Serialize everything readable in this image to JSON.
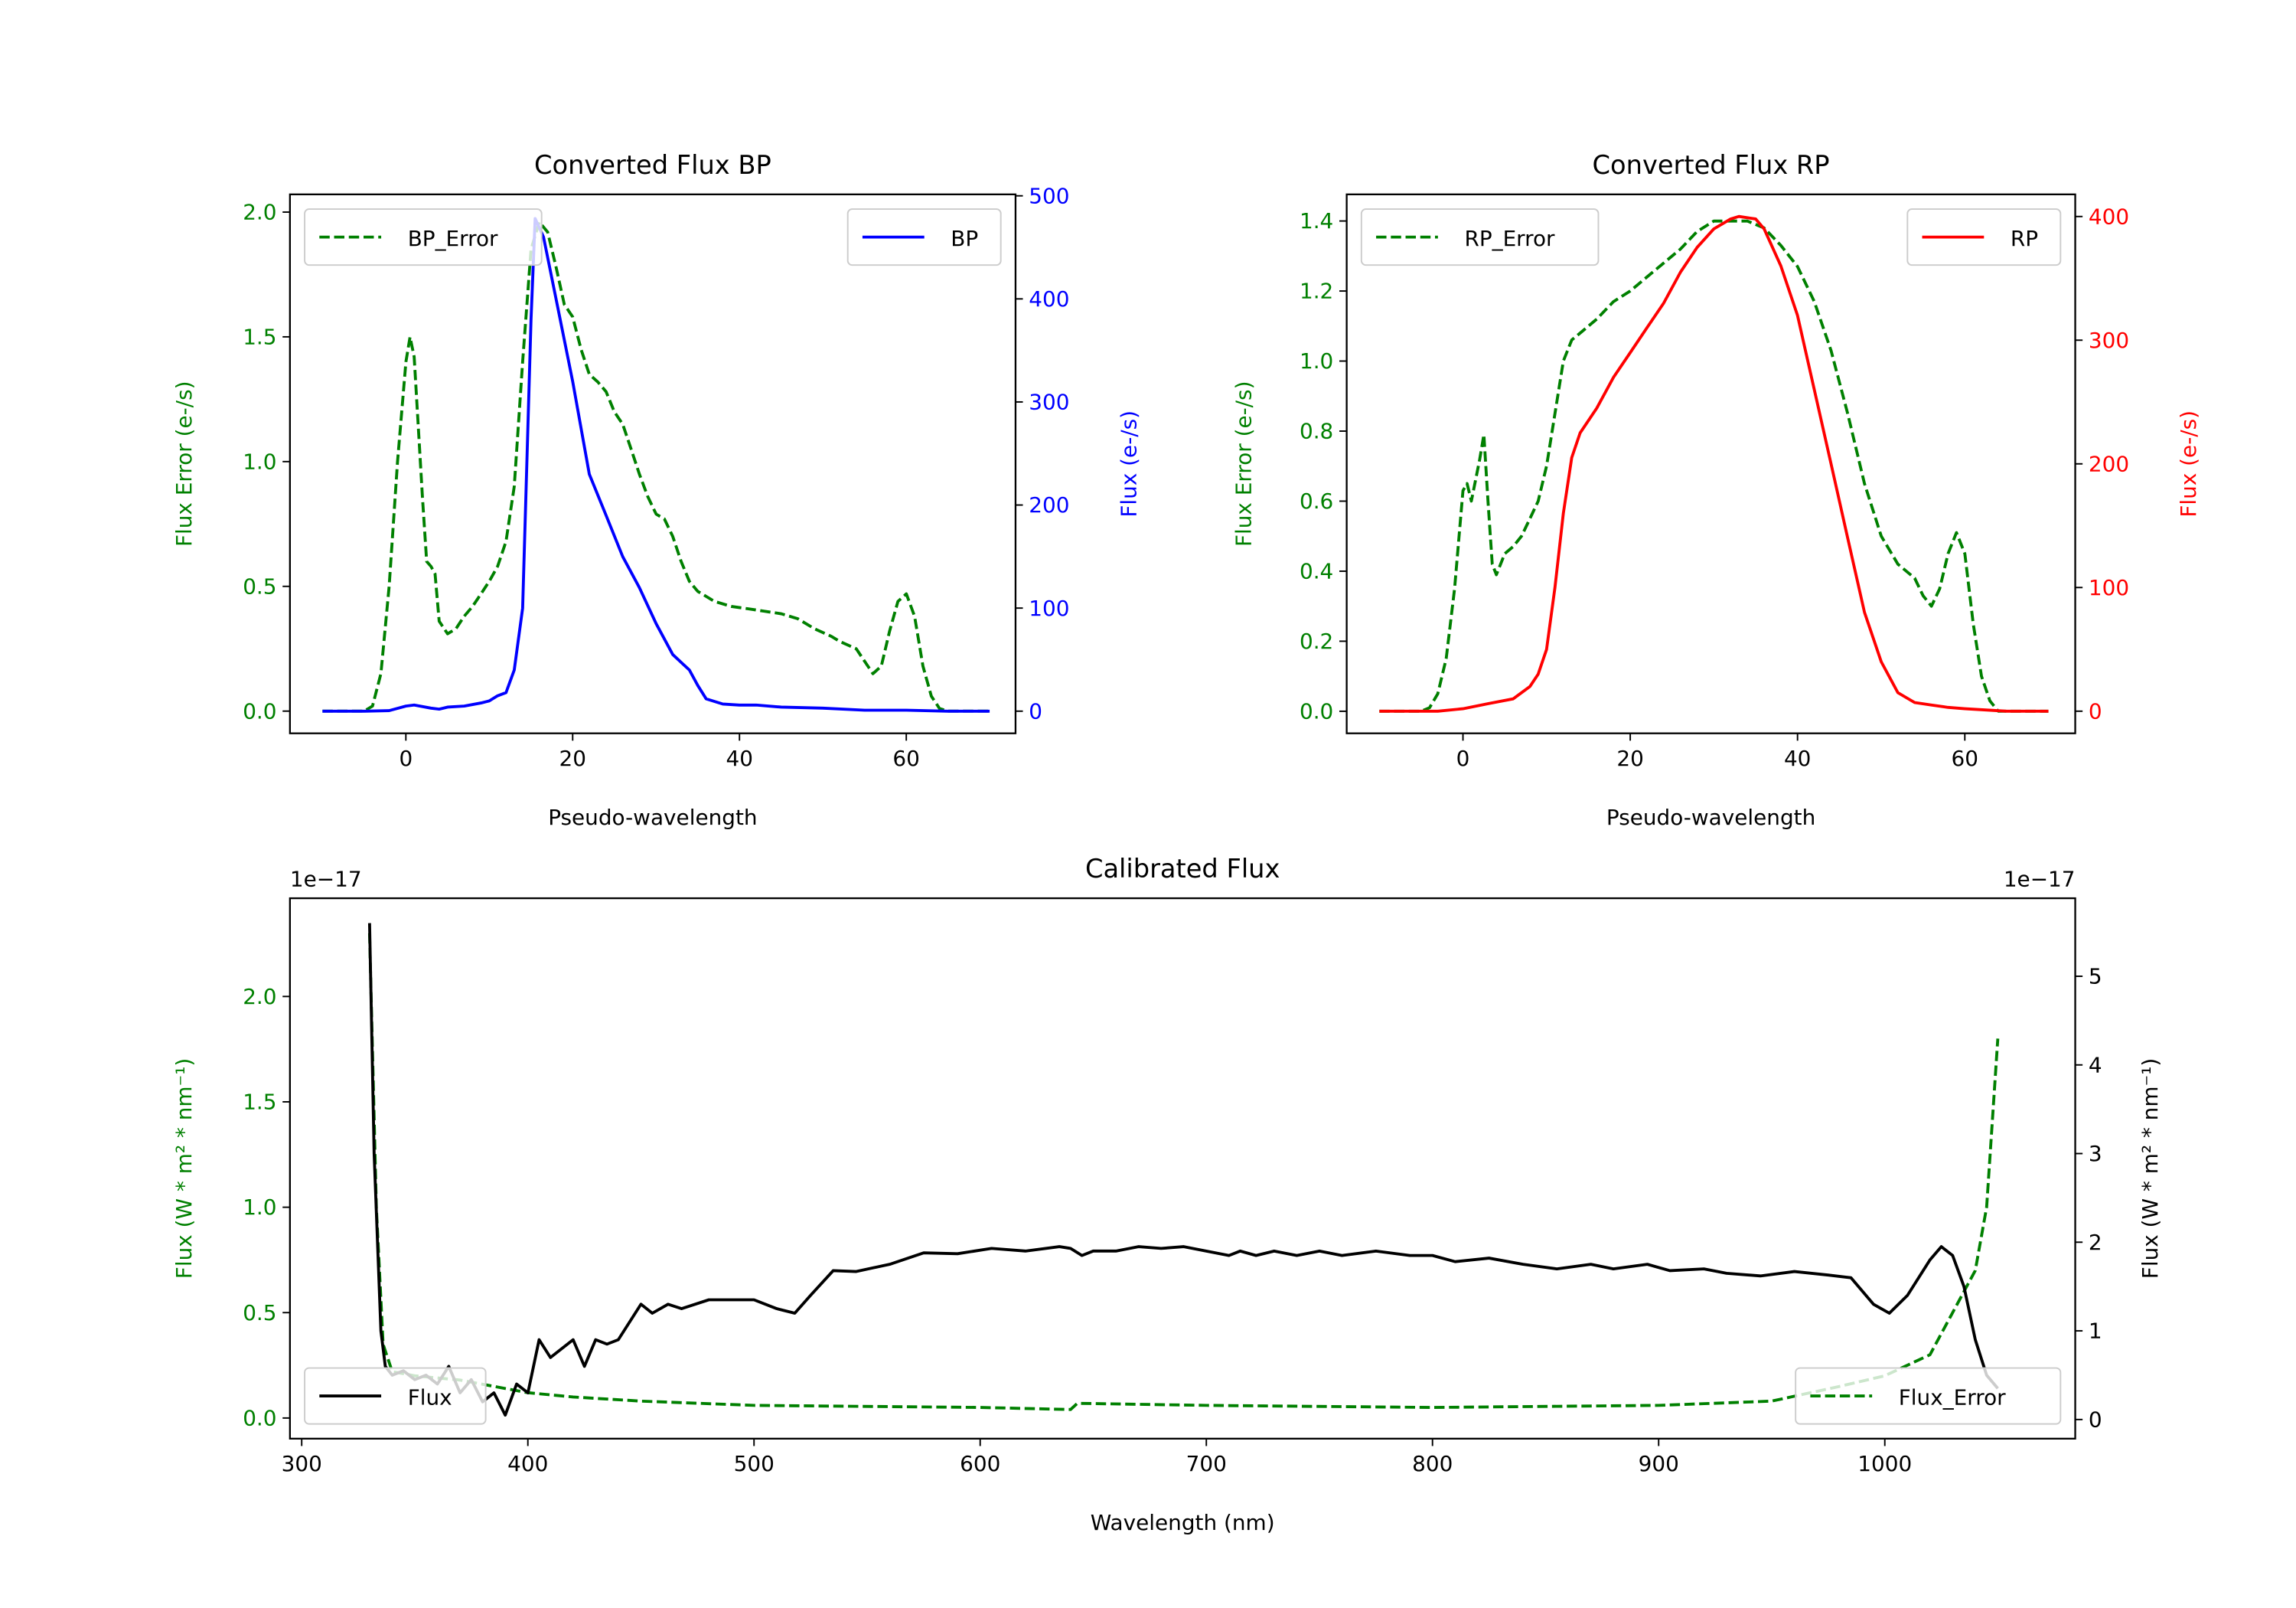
{
  "chart_data": [
    {
      "id": "bp",
      "type": "line",
      "title": "Converted Flux BP",
      "xlabel": "Pseudo-wavelength",
      "ylabel_left": "Flux Error (e-/s)",
      "ylabel_right": "Flux (e-/s)",
      "left_color": "#008000",
      "right_color": "#0000ff",
      "xlim": [
        -13.9,
        73.1
      ],
      "ylim_left": [
        -0.089,
        2.071
      ],
      "ylim_right": [
        -21.5,
        501.4
      ],
      "xticks": [
        0,
        20,
        40,
        60
      ],
      "yticks_left": [
        "0.0",
        "0.5",
        "1.0",
        "1.5",
        "2.0"
      ],
      "yticks_right": [
        "0",
        "100",
        "200",
        "300",
        "400",
        "500"
      ],
      "legend_left": {
        "label": "BP_Error",
        "placement": "upper-left"
      },
      "legend_right": {
        "label": "BP",
        "placement": "upper-right"
      },
      "series": [
        {
          "name": "BP_Error",
          "axis": "left",
          "style": "dashed",
          "color": "#008000",
          "x": [
            -10,
            -5,
            -4,
            -3,
            -2,
            -1,
            0,
            0.5,
            1,
            2,
            2.5,
            3,
            3.5,
            4,
            5,
            6,
            7,
            8,
            9,
            10,
            11,
            12,
            13,
            14,
            15,
            16,
            17,
            18,
            19,
            20,
            21,
            22,
            23,
            24,
            25,
            26,
            27,
            28,
            29,
            30,
            31,
            32,
            33,
            34,
            35,
            36,
            37,
            39,
            41,
            43,
            45,
            47,
            49,
            51,
            52,
            54,
            55,
            56,
            57,
            58,
            59,
            60,
            61,
            62,
            63,
            64,
            65,
            70
          ],
          "y": [
            0,
            0,
            0.02,
            0.15,
            0.5,
            1.0,
            1.4,
            1.5,
            1.42,
            0.85,
            0.6,
            0.58,
            0.55,
            0.36,
            0.31,
            0.33,
            0.38,
            0.42,
            0.47,
            0.52,
            0.58,
            0.68,
            0.9,
            1.4,
            1.85,
            1.96,
            1.92,
            1.78,
            1.63,
            1.58,
            1.45,
            1.35,
            1.32,
            1.28,
            1.2,
            1.15,
            1.05,
            0.95,
            0.86,
            0.79,
            0.77,
            0.7,
            0.6,
            0.52,
            0.48,
            0.46,
            0.44,
            0.42,
            0.41,
            0.4,
            0.39,
            0.37,
            0.33,
            0.3,
            0.28,
            0.25,
            0.2,
            0.15,
            0.18,
            0.32,
            0.44,
            0.47,
            0.38,
            0.18,
            0.06,
            0.01,
            0,
            0
          ]
        },
        {
          "name": "BP",
          "axis": "right",
          "style": "solid",
          "color": "#0000ff",
          "x": [
            -10,
            -5,
            -2,
            0,
            1,
            3,
            4,
            5,
            7,
            9,
            10,
            11,
            12,
            13,
            14,
            15,
            15.5,
            16.5,
            18,
            20,
            22,
            24,
            26,
            28,
            30,
            32,
            34,
            35,
            36,
            38,
            40,
            42,
            45,
            50,
            55,
            60,
            65,
            70
          ],
          "y": [
            0,
            0,
            0.5,
            5,
            6,
            3,
            2,
            4,
            5,
            8,
            10,
            15,
            18,
            40,
            100,
            380,
            478,
            460,
            400,
            320,
            230,
            190,
            150,
            120,
            85,
            55,
            40,
            25,
            12,
            7,
            6,
            6,
            4,
            3,
            1,
            1,
            0,
            0
          ]
        }
      ]
    },
    {
      "id": "rp",
      "type": "line",
      "title": "Converted Flux RP",
      "xlabel": "Pseudo-wavelength",
      "ylabel_left": "Flux Error (e-/s)",
      "ylabel_right": "Flux (e-/s)",
      "left_color": "#008000",
      "right_color": "#ff0000",
      "xlim": [
        -13.9,
        73.2
      ],
      "ylim_left": [
        -0.063,
        1.476
      ],
      "ylim_right": [
        -17.9,
        417.9
      ],
      "xticks": [
        0,
        20,
        40,
        60
      ],
      "yticks_left": [
        "0.0",
        "0.2",
        "0.4",
        "0.6",
        "0.8",
        "1.0",
        "1.2",
        "1.4"
      ],
      "yticks_right": [
        "0",
        "100",
        "200",
        "300",
        "400"
      ],
      "legend_left": {
        "label": "RP_Error",
        "placement": "upper-left"
      },
      "legend_right": {
        "label": "RP",
        "placement": "upper-right"
      },
      "series": [
        {
          "name": "RP_Error",
          "axis": "left",
          "style": "dashed",
          "color": "#008000",
          "x": [
            -10,
            -5,
            -4,
            -3,
            -2,
            -1,
            0,
            0.5,
            1,
            2,
            2.5,
            3,
            3.5,
            4,
            5,
            6,
            7,
            8,
            9,
            10,
            11,
            12,
            13,
            14,
            16,
            18,
            20,
            22,
            24,
            26,
            28,
            30,
            32,
            34,
            36,
            38,
            40,
            42,
            44,
            46,
            48,
            50,
            52,
            54,
            55,
            56,
            57,
            58,
            59,
            60,
            61,
            62,
            63,
            64,
            70
          ],
          "y": [
            0,
            0,
            0.01,
            0.05,
            0.15,
            0.35,
            0.63,
            0.65,
            0.6,
            0.72,
            0.79,
            0.6,
            0.42,
            0.39,
            0.45,
            0.47,
            0.5,
            0.55,
            0.6,
            0.7,
            0.85,
            1.0,
            1.06,
            1.08,
            1.12,
            1.17,
            1.2,
            1.24,
            1.28,
            1.32,
            1.37,
            1.4,
            1.4,
            1.4,
            1.38,
            1.33,
            1.27,
            1.17,
            1.03,
            0.85,
            0.65,
            0.5,
            0.42,
            0.38,
            0.33,
            0.3,
            0.35,
            0.45,
            0.51,
            0.45,
            0.25,
            0.1,
            0.03,
            0,
            0
          ]
        },
        {
          "name": "RP",
          "axis": "right",
          "style": "solid",
          "color": "#ff0000",
          "x": [
            -10,
            -3,
            0,
            3,
            6,
            8,
            9,
            10,
            11,
            12,
            13,
            14,
            16,
            18,
            20,
            22,
            24,
            26,
            28,
            30,
            32,
            33,
            35,
            36,
            38,
            40,
            42,
            44,
            46,
            48,
            50,
            52,
            54,
            56,
            58,
            60,
            65,
            70
          ],
          "y": [
            0,
            0,
            2,
            6,
            10,
            20,
            30,
            50,
            100,
            160,
            205,
            225,
            245,
            270,
            290,
            310,
            330,
            355,
            375,
            390,
            398,
            400,
            398,
            390,
            360,
            320,
            260,
            200,
            140,
            80,
            40,
            15,
            7,
            5,
            3,
            2,
            0,
            0
          ]
        }
      ]
    },
    {
      "id": "cal",
      "type": "line",
      "title": "Calibrated Flux",
      "xlabel": "Wavelength (nm)",
      "ylabel_left": "Flux (W * m² * nm⁻¹)",
      "ylabel_right": "Flux (W * m² * nm⁻¹)",
      "left_color": "#008000",
      "right_color": "#000000",
      "offset_left": "1e−17",
      "offset_right": "1e−17",
      "xlim": [
        294.8,
        1084.2
      ],
      "ylim_left": [
        -0.098,
        2.466
      ],
      "ylim_right": [
        -0.216,
        5.88
      ],
      "xticks": [
        300,
        400,
        500,
        600,
        700,
        800,
        900,
        1000
      ],
      "yticks_left": [
        "0.0",
        "0.5",
        "1.0",
        "1.5",
        "2.0"
      ],
      "yticks_right": [
        "0",
        "1",
        "2",
        "3",
        "4",
        "5"
      ],
      "legend_right": {
        "label": "Flux",
        "placement": "lower-left"
      },
      "legend_left": {
        "label": "Flux_Error",
        "placement": "lower-right"
      },
      "series": [
        {
          "name": "Flux_Error",
          "axis": "left",
          "style": "dashed",
          "color": "#008000",
          "x": [
            330,
            333,
            336,
            340,
            350,
            370,
            400,
            420,
            450,
            500,
            600,
            640,
            643,
            700,
            800,
            900,
            950,
            980,
            1000,
            1020,
            1030,
            1040,
            1045,
            1050
          ],
          "y": [
            2.3,
            1.0,
            0.35,
            0.22,
            0.2,
            0.18,
            0.12,
            0.1,
            0.08,
            0.06,
            0.05,
            0.04,
            0.07,
            0.06,
            0.05,
            0.06,
            0.08,
            0.15,
            0.2,
            0.3,
            0.5,
            0.7,
            1.0,
            1.8
          ]
        },
        {
          "name": "Flux",
          "axis": "right",
          "style": "solid",
          "color": "#000000",
          "x": [
            330,
            332,
            335,
            337,
            340,
            345,
            350,
            355,
            360,
            365,
            370,
            375,
            380,
            385,
            390,
            395,
            400,
            405,
            410,
            420,
            425,
            430,
            435,
            440,
            450,
            455,
            462,
            468,
            480,
            490,
            500,
            510,
            518,
            525,
            535,
            545,
            560,
            575,
            590,
            605,
            620,
            635,
            640,
            645,
            650,
            660,
            670,
            680,
            690,
            700,
            710,
            715,
            722,
            730,
            740,
            750,
            760,
            775,
            790,
            800,
            810,
            825,
            840,
            855,
            870,
            880,
            895,
            905,
            920,
            930,
            945,
            960,
            975,
            985,
            995,
            1002,
            1010,
            1020,
            1025,
            1030,
            1035,
            1040,
            1045,
            1050
          ],
          "y": [
            5.6,
            3.0,
            1.0,
            0.6,
            0.5,
            0.55,
            0.45,
            0.5,
            0.4,
            0.6,
            0.3,
            0.45,
            0.2,
            0.3,
            0.05,
            0.4,
            0.3,
            0.9,
            0.7,
            0.9,
            0.6,
            0.9,
            0.85,
            0.9,
            1.3,
            1.2,
            1.3,
            1.25,
            1.35,
            1.35,
            1.35,
            1.25,
            1.2,
            1.4,
            1.68,
            1.67,
            1.75,
            1.88,
            1.87,
            1.93,
            1.9,
            1.95,
            1.93,
            1.85,
            1.9,
            1.9,
            1.95,
            1.93,
            1.95,
            1.9,
            1.85,
            1.9,
            1.85,
            1.9,
            1.85,
            1.9,
            1.85,
            1.9,
            1.85,
            1.85,
            1.78,
            1.82,
            1.75,
            1.7,
            1.75,
            1.7,
            1.75,
            1.68,
            1.7,
            1.65,
            1.62,
            1.67,
            1.63,
            1.6,
            1.3,
            1.2,
            1.4,
            1.8,
            1.95,
            1.85,
            1.5,
            0.9,
            0.5,
            0.35
          ]
        }
      ]
    }
  ]
}
